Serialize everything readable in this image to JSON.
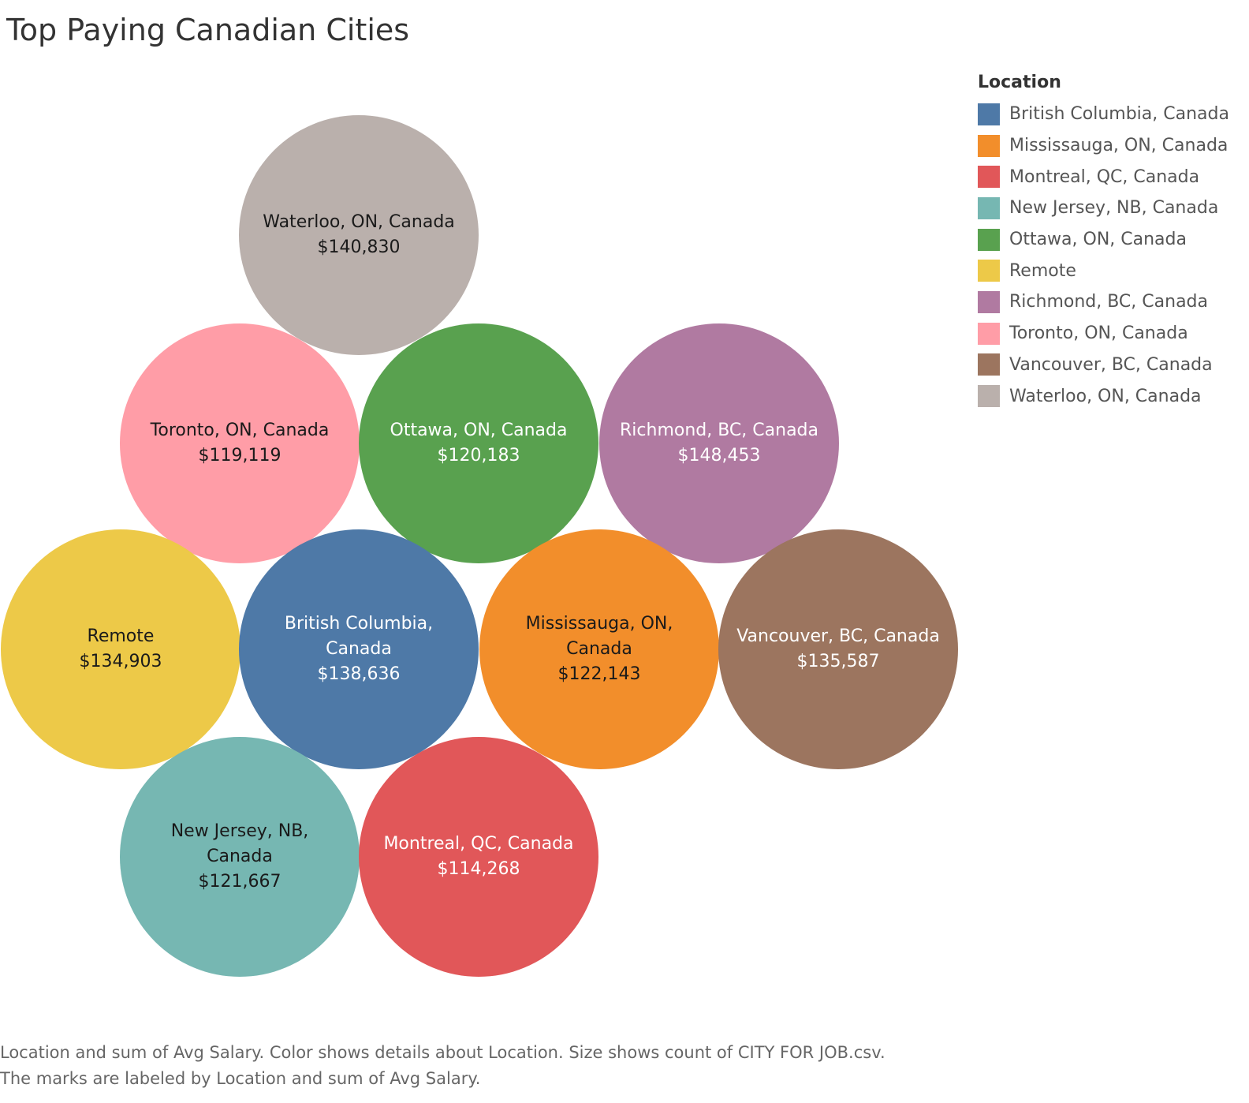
{
  "chart_data": {
    "type": "bubble",
    "title": "Top Paying Canadian Cities",
    "legend": {
      "title": "Location",
      "placement": "right",
      "items": [
        {
          "label": "British Columbia, Canada",
          "color": "#4e79a7"
        },
        {
          "label": "Mississauga, ON, Canada",
          "color": "#f28e2b"
        },
        {
          "label": "Montreal, QC, Canada",
          "color": "#e15759"
        },
        {
          "label": "New Jersey, NB, Canada",
          "color": "#76b7b2"
        },
        {
          "label": "Ottawa, ON, Canada",
          "color": "#59a14f"
        },
        {
          "label": "Remote",
          "color": "#edc948"
        },
        {
          "label": "Richmond, BC, Canada",
          "color": "#b07aa1"
        },
        {
          "label": "Toronto, ON, Canada",
          "color": "#ff9da7"
        },
        {
          "label": "Vancouver, BC, Canada",
          "color": "#9c755f"
        },
        {
          "label": "Waterloo, ON, Canada",
          "color": "#bab0ac"
        }
      ]
    },
    "bubbles": [
      {
        "location": "Waterloo, ON, Canada",
        "value": 140830,
        "value_label": "$140,830",
        "color": "#bab0ac",
        "text_color": "#1a1a1a",
        "label_lines": [
          "Waterloo, ON, Canada",
          "$140,830"
        ]
      },
      {
        "location": "Toronto, ON, Canada",
        "value": 119119,
        "value_label": "$119,119",
        "color": "#ff9da7",
        "text_color": "#1a1a1a",
        "label_lines": [
          "Toronto, ON, Canada",
          "$119,119"
        ]
      },
      {
        "location": "Ottawa, ON, Canada",
        "value": 120183,
        "value_label": "$120,183",
        "color": "#59a14f",
        "text_color": "#ffffff",
        "label_lines": [
          "Ottawa, ON, Canada",
          "$120,183"
        ]
      },
      {
        "location": "Richmond, BC, Canada",
        "value": 148453,
        "value_label": "$148,453",
        "color": "#b07aa1",
        "text_color": "#ffffff",
        "label_lines": [
          "Richmond, BC, Canada",
          "$148,453"
        ]
      },
      {
        "location": "Remote",
        "value": 134903,
        "value_label": "$134,903",
        "color": "#edc948",
        "text_color": "#1a1a1a",
        "label_lines": [
          "Remote",
          "$134,903"
        ]
      },
      {
        "location": "British Columbia, Canada",
        "value": 138636,
        "value_label": "$138,636",
        "color": "#4e79a7",
        "text_color": "#ffffff",
        "label_lines": [
          "British Columbia,",
          "Canada",
          "$138,636"
        ]
      },
      {
        "location": "Mississauga, ON, Canada",
        "value": 122143,
        "value_label": "$122,143",
        "color": "#f28e2b",
        "text_color": "#1a1a1a",
        "label_lines": [
          "Mississauga, ON,",
          "Canada",
          "$122,143"
        ]
      },
      {
        "location": "Vancouver, BC, Canada",
        "value": 135587,
        "value_label": "$135,587",
        "color": "#9c755f",
        "text_color": "#ffffff",
        "label_lines": [
          "Vancouver, BC, Canada",
          "$135,587"
        ]
      },
      {
        "location": "New Jersey, NB, Canada",
        "value": 121667,
        "value_label": "$121,667",
        "color": "#76b7b2",
        "text_color": "#1a1a1a",
        "label_lines": [
          "New Jersey, NB,",
          "Canada",
          "$121,667"
        ]
      },
      {
        "location": "Montreal, QC, Canada",
        "value": 114268,
        "value_label": "$114,268",
        "color": "#e15759",
        "text_color": "#ffffff",
        "label_lines": [
          "Montreal, QC, Canada",
          "$114,268"
        ]
      }
    ]
  },
  "caption": {
    "line1": "Location and sum of Avg Salary.  Color shows details about Location.  Size shows count of CITY FOR JOB.csv.",
    "line2": "The marks are labeled by Location and sum of Avg Salary."
  }
}
